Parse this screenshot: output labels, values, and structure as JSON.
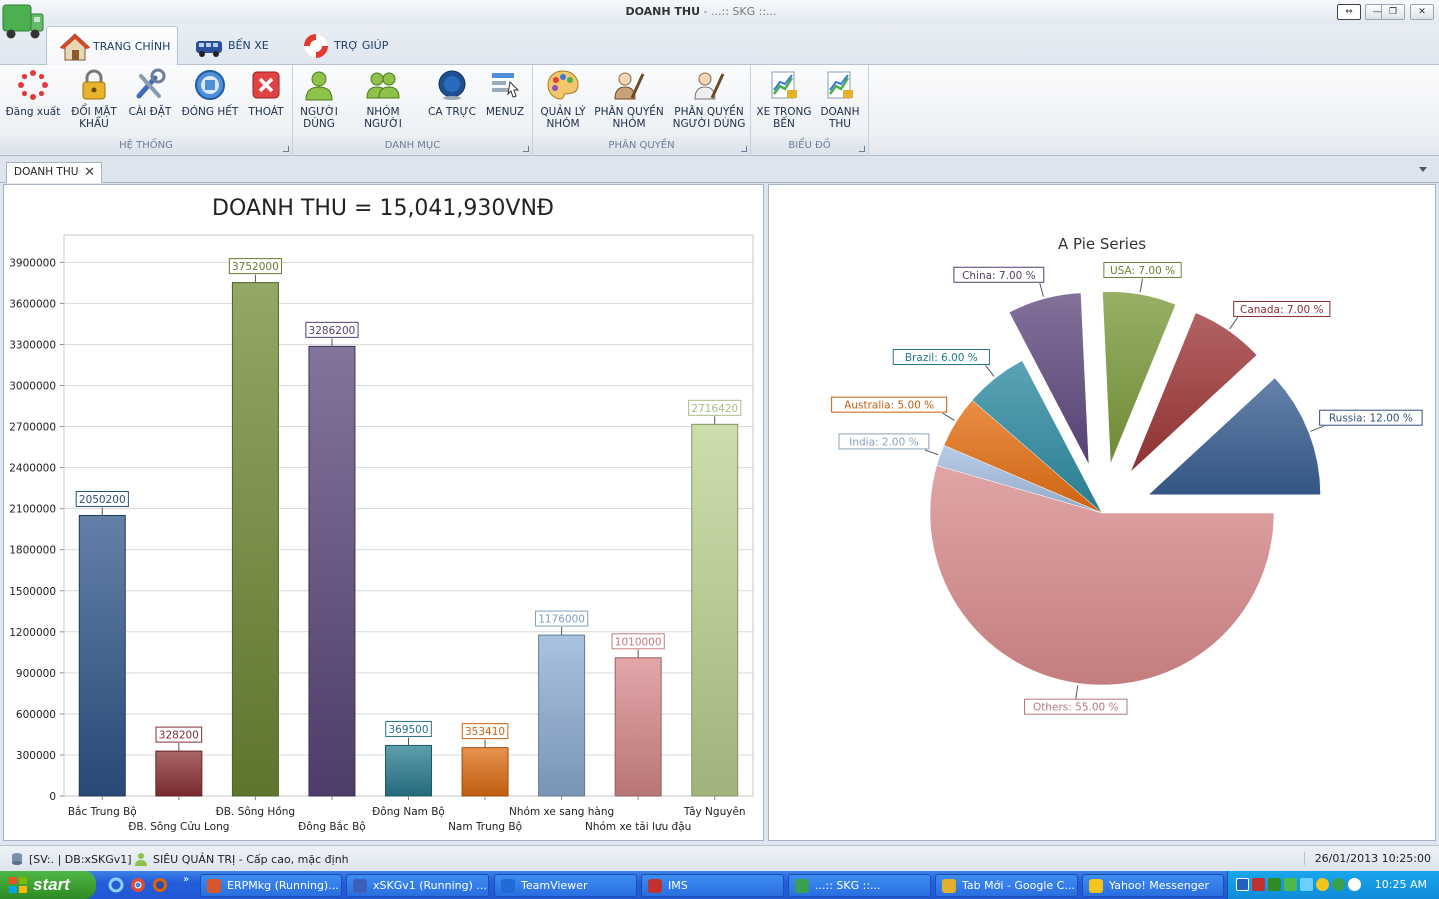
{
  "window": {
    "title": "DOANH THU",
    "subtitle": " - ...:: SKG ::...",
    "buttons": {
      "help": "⇔",
      "minimize": "—",
      "restore": "❐",
      "close": "✕"
    }
  },
  "ribbon": {
    "tabs": [
      {
        "label": "TRANG CHÍNH",
        "icon": "house-icon",
        "active": true
      },
      {
        "label": "BẾN XE",
        "icon": "bus-icon",
        "active": false
      },
      {
        "label": "TRỢ GIÚP",
        "icon": "lifebuoy-icon",
        "active": false
      }
    ],
    "groups": [
      {
        "label": "HỆ THỐNG",
        "buttons": [
          {
            "l1": "Đăng xuất",
            "l2": "",
            "icon": "logout-icon"
          },
          {
            "l1": "ĐỔI MẬT",
            "l2": "KHẨU",
            "icon": "padlock-icon"
          },
          {
            "l1": "CÀI ĐẶT",
            "l2": "",
            "icon": "tools-icon"
          },
          {
            "l1": "ĐÓNG HẾT",
            "l2": "",
            "icon": "close-all-icon"
          },
          {
            "l1": "THOÁT",
            "l2": "",
            "icon": "exit-icon"
          }
        ]
      },
      {
        "label": "DANH MỤC",
        "buttons": [
          {
            "l1": "NGƯỜI",
            "l2": "DÙNG",
            "icon": "user-icon"
          },
          {
            "l1": "NHÓM NGƯỜI",
            "l2": "",
            "icon": "user-group-icon"
          },
          {
            "l1": "CA TRỰC",
            "l2": "",
            "icon": "shift-icon"
          },
          {
            "l1": "MENUZ",
            "l2": "",
            "icon": "menu-icon"
          }
        ]
      },
      {
        "label": "PHÂN QUYỀN",
        "buttons": [
          {
            "l1": "QUẢN LÝ",
            "l2": "NHÓM",
            "icon": "palette-icon"
          },
          {
            "l1": "PHÂN QUYỀN",
            "l2": "NHÓM",
            "icon": "group-permission-icon"
          },
          {
            "l1": "PHÂN QUYỀN",
            "l2": "NGƯỜI DÙNG",
            "icon": "user-permission-icon"
          }
        ]
      },
      {
        "label": "BIỂU ĐỒ",
        "buttons": [
          {
            "l1": "XE TRONG",
            "l2": "BẾN",
            "icon": "chart-icon"
          },
          {
            "l1": "DOANH",
            "l2": "THU",
            "icon": "revenue-chart-icon"
          }
        ]
      }
    ]
  },
  "doc_tab": {
    "label": "DOANH THU",
    "close": "✕"
  },
  "chart_data": [
    {
      "type": "bar",
      "title": "DOANH THU = 15,041,930VNĐ",
      "xlabel": "",
      "ylabel": "",
      "ylim": [
        0,
        4100000
      ],
      "yticks": [
        "0",
        "300000",
        "600000",
        "900000",
        "1200000",
        "1500000",
        "1800000",
        "2100000",
        "2400000",
        "2700000",
        "3000000",
        "3300000",
        "3600000",
        "3900000"
      ],
      "categories": [
        "Bắc Trung Bộ",
        "ĐB. Sông Cửu Long",
        "ĐB. Sông Hồng",
        "Đông Bắc Bộ",
        "Đông Nam Bộ",
        "Nam Trung Bộ",
        "Nhóm xe sang hàng",
        "Nhóm xe tải lưu đậu",
        "Tây Nguyên"
      ],
      "values": [
        2050200,
        328200,
        3752000,
        3286200,
        369500,
        353410,
        1176000,
        1010000,
        2716420
      ],
      "value_labels": [
        "2050200",
        "328200",
        "3752000",
        "3286200",
        "369500",
        "353410",
        "1176000",
        "1010000",
        "2716420"
      ],
      "colors": [
        "#2f568a",
        "#8e3336",
        "#6f8a34",
        "#5a467c",
        "#2a7d92",
        "#e06d14",
        "#8eaed6",
        "#d98a8c",
        "#bcd392"
      ],
      "grid": true
    },
    {
      "type": "pie",
      "title": "A Pie Series",
      "slices": [
        {
          "name": "Russia",
          "value": 12.0,
          "label": "Russia: 12.00 %",
          "color": "#3a5f92",
          "exploded": true
        },
        {
          "name": "Canada",
          "value": 7.0,
          "label": "Canada: 7.00 %",
          "color": "#9e3638",
          "exploded": true
        },
        {
          "name": "USA",
          "value": 7.0,
          "label": "USA: 7.00 %",
          "color": "#7a9a3b",
          "exploded": true
        },
        {
          "name": "China",
          "value": 7.0,
          "label": "China: 7.00 %",
          "color": "#60497f",
          "exploded": true
        },
        {
          "name": "Brazil",
          "value": 6.0,
          "label": "Brazil: 6.00 %",
          "color": "#2d8aa1",
          "exploded": false
        },
        {
          "name": "Australia",
          "value": 5.0,
          "label": "Australia: 5.00 %",
          "color": "#e46e12",
          "exploded": false
        },
        {
          "name": "India",
          "value": 2.0,
          "label": "India: 2.00 %",
          "color": "#a3bde0",
          "exploded": false
        },
        {
          "name": "Others",
          "value": 55.0,
          "label": "Others: 55.00 %",
          "color": "#d98b8d",
          "exploded": false
        }
      ]
    }
  ],
  "status": {
    "server": "[SV:. | DB:xSKGv1]",
    "user": "SIÊU QUẢN TRỊ - Cấp cao, mặc định",
    "datetime": "26/01/2013 10:25:00"
  },
  "taskbar": {
    "start": "start",
    "tasks": [
      {
        "label": "ERPMkg (Running)...",
        "color": "#d9562c"
      },
      {
        "label": "xSKGv1 (Running) ...",
        "color": "#3a5fb8"
      },
      {
        "label": "TeamViewer",
        "color": "#1e6bd6"
      },
      {
        "label": "IMS",
        "color": "#c23030"
      },
      {
        "label": "...:: SKG ::...",
        "color": "#3aa050"
      },
      {
        "label": "Tab Mới - Google C...",
        "color": "#e2b02a"
      },
      {
        "label": "Yahoo! Messenger",
        "color": "#f2c51d"
      }
    ],
    "clock": "10:25 AM"
  }
}
